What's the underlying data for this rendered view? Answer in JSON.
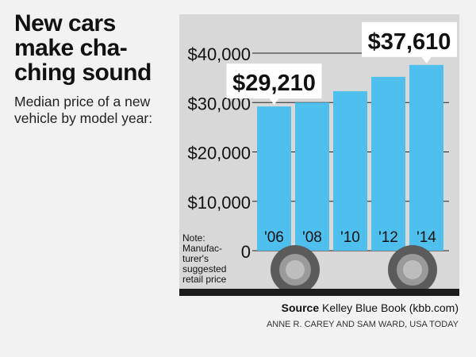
{
  "title": "New cars\nmake cha-\nching sound",
  "subtitle": "Median price of a new vehicle by model year:",
  "note": "Note:\nManufac-\nturer's\nsuggested\nretail price",
  "source_label": "Source",
  "source_text": "Kelley Blue Book (kbb.com)",
  "credit": "ANNE R. CAREY AND SAM WARD, USA TODAY",
  "colors": {
    "bar": "#4fbfed",
    "panel": "#d8d8d8",
    "wheel_outer": "#5b5b5b",
    "wheel_inner": "#9a9a9a",
    "wheel_hub": "#bdbdbd",
    "ground": "#1c1c1c"
  },
  "chart_data": {
    "type": "bar",
    "title": "Median price of a new vehicle by model year",
    "categories": [
      "'06",
      "'08",
      "'10",
      "'12",
      "'14"
    ],
    "values": [
      29210,
      30000,
      32300,
      35200,
      37610
    ],
    "labeled": {
      "0": "$29,210",
      "4": "$37,610"
    },
    "ylim": [
      0,
      40000
    ],
    "yticks": [
      0,
      10000,
      20000,
      30000,
      40000
    ],
    "ytick_labels": [
      "0",
      "$10,000",
      "$20,000",
      "$30,000",
      "$40,000"
    ],
    "xlabel": "",
    "ylabel": ""
  }
}
